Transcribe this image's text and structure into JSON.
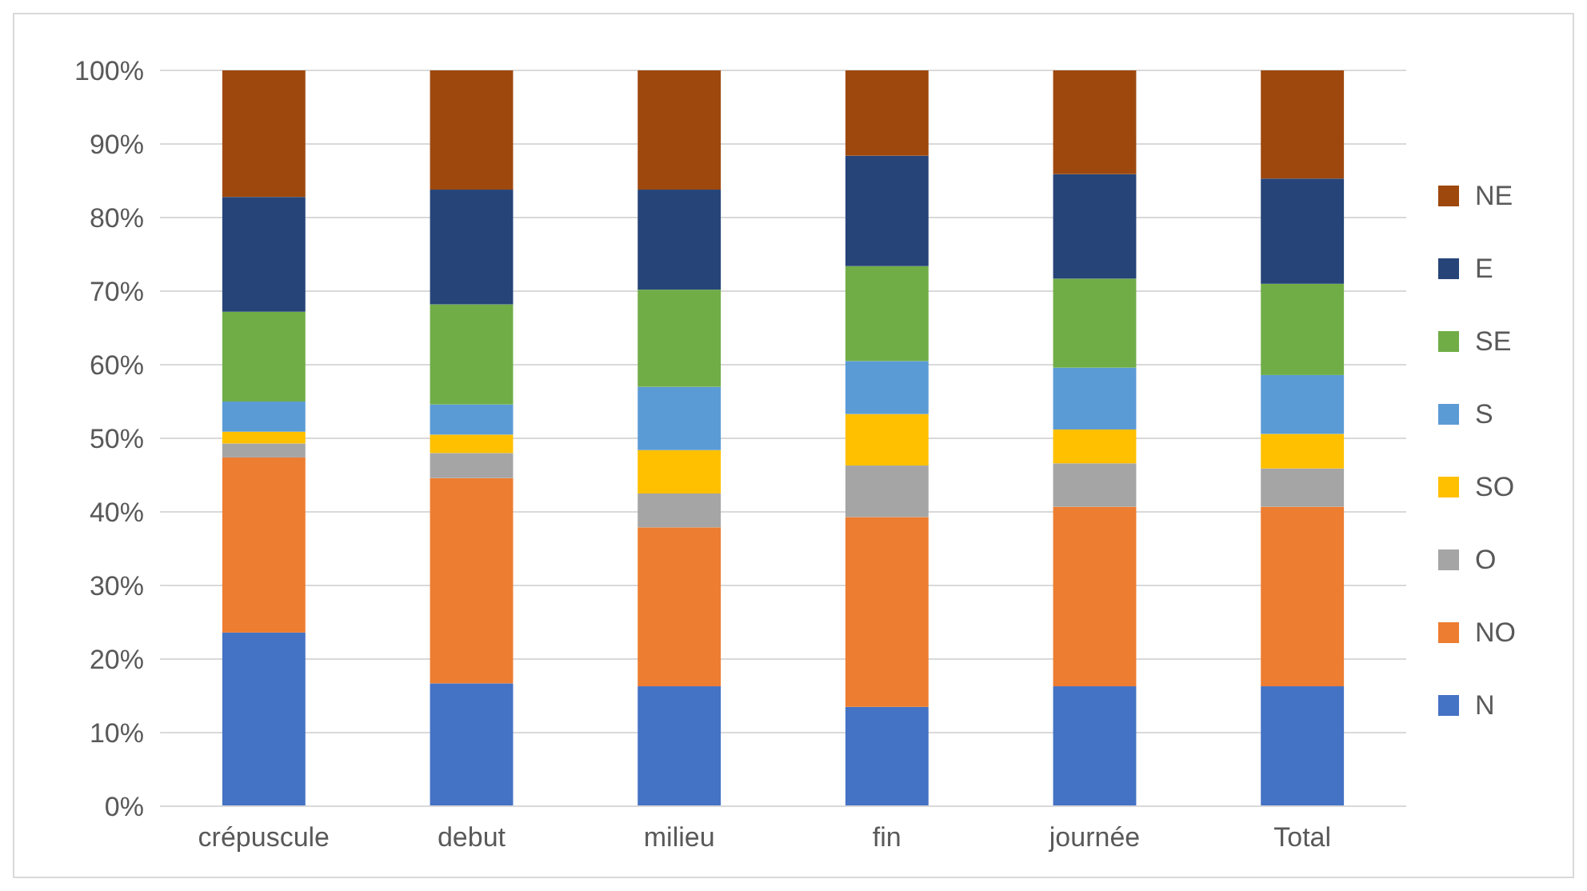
{
  "chart_data": {
    "type": "bar",
    "stacked": true,
    "categories": [
      "crépuscule",
      "debut",
      "milieu",
      "fin",
      "journée",
      "Total"
    ],
    "series": [
      {
        "name": "N",
        "color": "#4472c4",
        "values": [
          23.6,
          16.7,
          16.3,
          13.5,
          16.3,
          16.3
        ]
      },
      {
        "name": "NO",
        "color": "#ed7d31",
        "values": [
          23.8,
          27.9,
          21.6,
          25.8,
          24.4,
          24.4
        ]
      },
      {
        "name": "O",
        "color": "#a5a5a5",
        "values": [
          1.9,
          3.4,
          4.6,
          7.0,
          5.9,
          5.2
        ]
      },
      {
        "name": "SO",
        "color": "#ffc000",
        "values": [
          1.6,
          2.5,
          5.9,
          7.0,
          4.6,
          4.7
        ]
      },
      {
        "name": "S",
        "color": "#5b9bd5",
        "values": [
          4.1,
          4.1,
          8.6,
          7.2,
          8.4,
          8.0
        ]
      },
      {
        "name": "SE",
        "color": "#70ad47",
        "values": [
          12.2,
          13.6,
          13.2,
          12.9,
          12.1,
          12.4
        ]
      },
      {
        "name": "E",
        "color": "#264478",
        "values": [
          15.6,
          15.6,
          13.6,
          15.0,
          14.2,
          14.3
        ]
      },
      {
        "name": "NE",
        "color": "#9e480e",
        "values": [
          17.2,
          16.2,
          16.2,
          11.6,
          14.1,
          14.7
        ]
      }
    ],
    "ylim": [
      0,
      100
    ],
    "yticks": [
      {
        "value": 0,
        "label": "0%"
      },
      {
        "value": 10,
        "label": "10%"
      },
      {
        "value": 20,
        "label": "20%"
      },
      {
        "value": 30,
        "label": "30%"
      },
      {
        "value": 40,
        "label": "40%"
      },
      {
        "value": 50,
        "label": "50%"
      },
      {
        "value": 60,
        "label": "60%"
      },
      {
        "value": 70,
        "label": "70%"
      },
      {
        "value": 80,
        "label": "80%"
      },
      {
        "value": 90,
        "label": "90%"
      },
      {
        "value": 100,
        "label": "100%"
      }
    ],
    "grid": "y",
    "legend": "right"
  }
}
